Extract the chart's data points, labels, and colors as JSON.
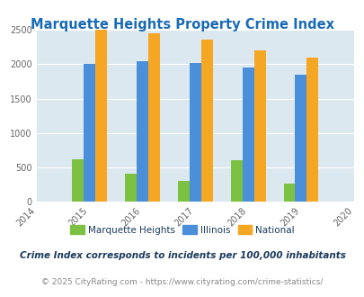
{
  "title": "Marquette Heights Property Crime Index",
  "years": [
    2015,
    2016,
    2017,
    2018,
    2019
  ],
  "xlim": [
    2014,
    2020
  ],
  "ylim": [
    0,
    2500
  ],
  "marquette_heights": [
    625,
    415,
    305,
    600,
    265
  ],
  "illinois": [
    2000,
    2045,
    2015,
    1945,
    1845
  ],
  "national": [
    2495,
    2445,
    2355,
    2200,
    2100
  ],
  "color_marquette": "#7dc142",
  "color_illinois": "#4b8fdb",
  "color_national": "#f5a623",
  "bg_color": "#dce8ef",
  "title_color": "#1a6bb5",
  "label_marquette": "Marquette Heights",
  "label_illinois": "Illinois",
  "label_national": "National",
  "footnote1": "Crime Index corresponds to incidents per 100,000 inhabitants",
  "footnote2": "© 2025 CityRating.com - https://www.cityrating.com/crime-statistics/",
  "yticks": [
    0,
    500,
    1000,
    1500,
    2000,
    2500
  ],
  "xticks": [
    2014,
    2015,
    2016,
    2017,
    2018,
    2019,
    2020
  ]
}
